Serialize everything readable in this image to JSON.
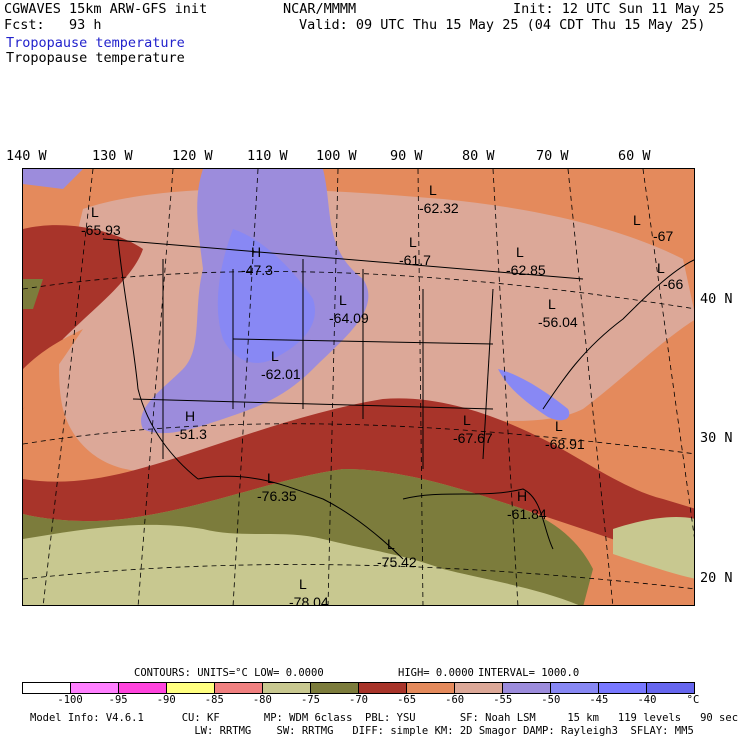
{
  "header": {
    "title_left": "CGWAVES 15km ARW-GFS init",
    "fcst": "Fcst:   93 h",
    "center": "NCAR/MMMM",
    "init": "Init: 12 UTC Sun 11 May 25",
    "valid": "Valid: 09 UTC Thu 15 May 25 (04 CDT Thu 15 May 25)",
    "field_title_color": "Tropopause temperature",
    "field_title_contour": "Tropopause temperature"
  },
  "axes": {
    "longitudes": [
      "140 W",
      "130 W",
      "120 W",
      "110 W",
      "100 W",
      "90 W",
      "80 W",
      "70 W",
      "60 W"
    ],
    "latitudes": [
      "40 N",
      "30 N",
      "20 N"
    ]
  },
  "map": {
    "extrema": [
      {
        "letter": "L",
        "value": "-65.93"
      },
      {
        "letter": "H",
        "value": "-47.3"
      },
      {
        "letter": "L",
        "value": "-64.09"
      },
      {
        "letter": "L",
        "value": "-62.01"
      },
      {
        "letter": "H",
        "value": "-51.3"
      },
      {
        "letter": "L",
        "value": "-62.32"
      },
      {
        "letter": "L",
        "value": "-61.7"
      },
      {
        "letter": "L",
        "value": "-62.85"
      },
      {
        "letter": "L",
        "value": "-56.04"
      },
      {
        "letter": "L",
        "value": "-67.67"
      },
      {
        "letter": "L",
        "value": "-68.91"
      },
      {
        "letter": "L",
        "value": "-76.35"
      },
      {
        "letter": "H",
        "value": "-61.84"
      },
      {
        "letter": "L",
        "value": "-75.42"
      },
      {
        "letter": "L",
        "value": "-78.04"
      },
      {
        "letter": "L",
        "value": "-67"
      },
      {
        "letter": "L",
        "value": "-66"
      }
    ]
  },
  "contour_info": {
    "label": "CONTOURS:  UNITS=°C  LOW=  0.0000",
    "high": "HIGH=  0.0000",
    "interval": "INTERVAL=   1000.0"
  },
  "colorbar": {
    "colors": [
      "#ffffff",
      "#ff80ff",
      "#ff44dd",
      "#ffff80",
      "#f08080",
      "#c8c890",
      "#7c7c3c",
      "#a8342a",
      "#e48a5c",
      "#dca898",
      "#9c8cdc",
      "#8888f4",
      "#7878ff",
      "#6666ee"
    ],
    "ticks": [
      "-100",
      "-95",
      "-90",
      "-85",
      "-80",
      "-75",
      "-70",
      "-65",
      "-60",
      "-55",
      "-50",
      "-45",
      "-40"
    ],
    "unit": "°C"
  },
  "footer": {
    "line1": "Model Info: V4.6.1      CU: KF       MP: WDM 6class  PBL: YSU       SF: Noah LSM     15 km   119 levels   90 sec",
    "line2": "                          LW: RRTMG    SW: RRTMG   DIFF: simple KM: 2D Smagor DAMP: Rayleigh3  SFLAY: MM5"
  }
}
